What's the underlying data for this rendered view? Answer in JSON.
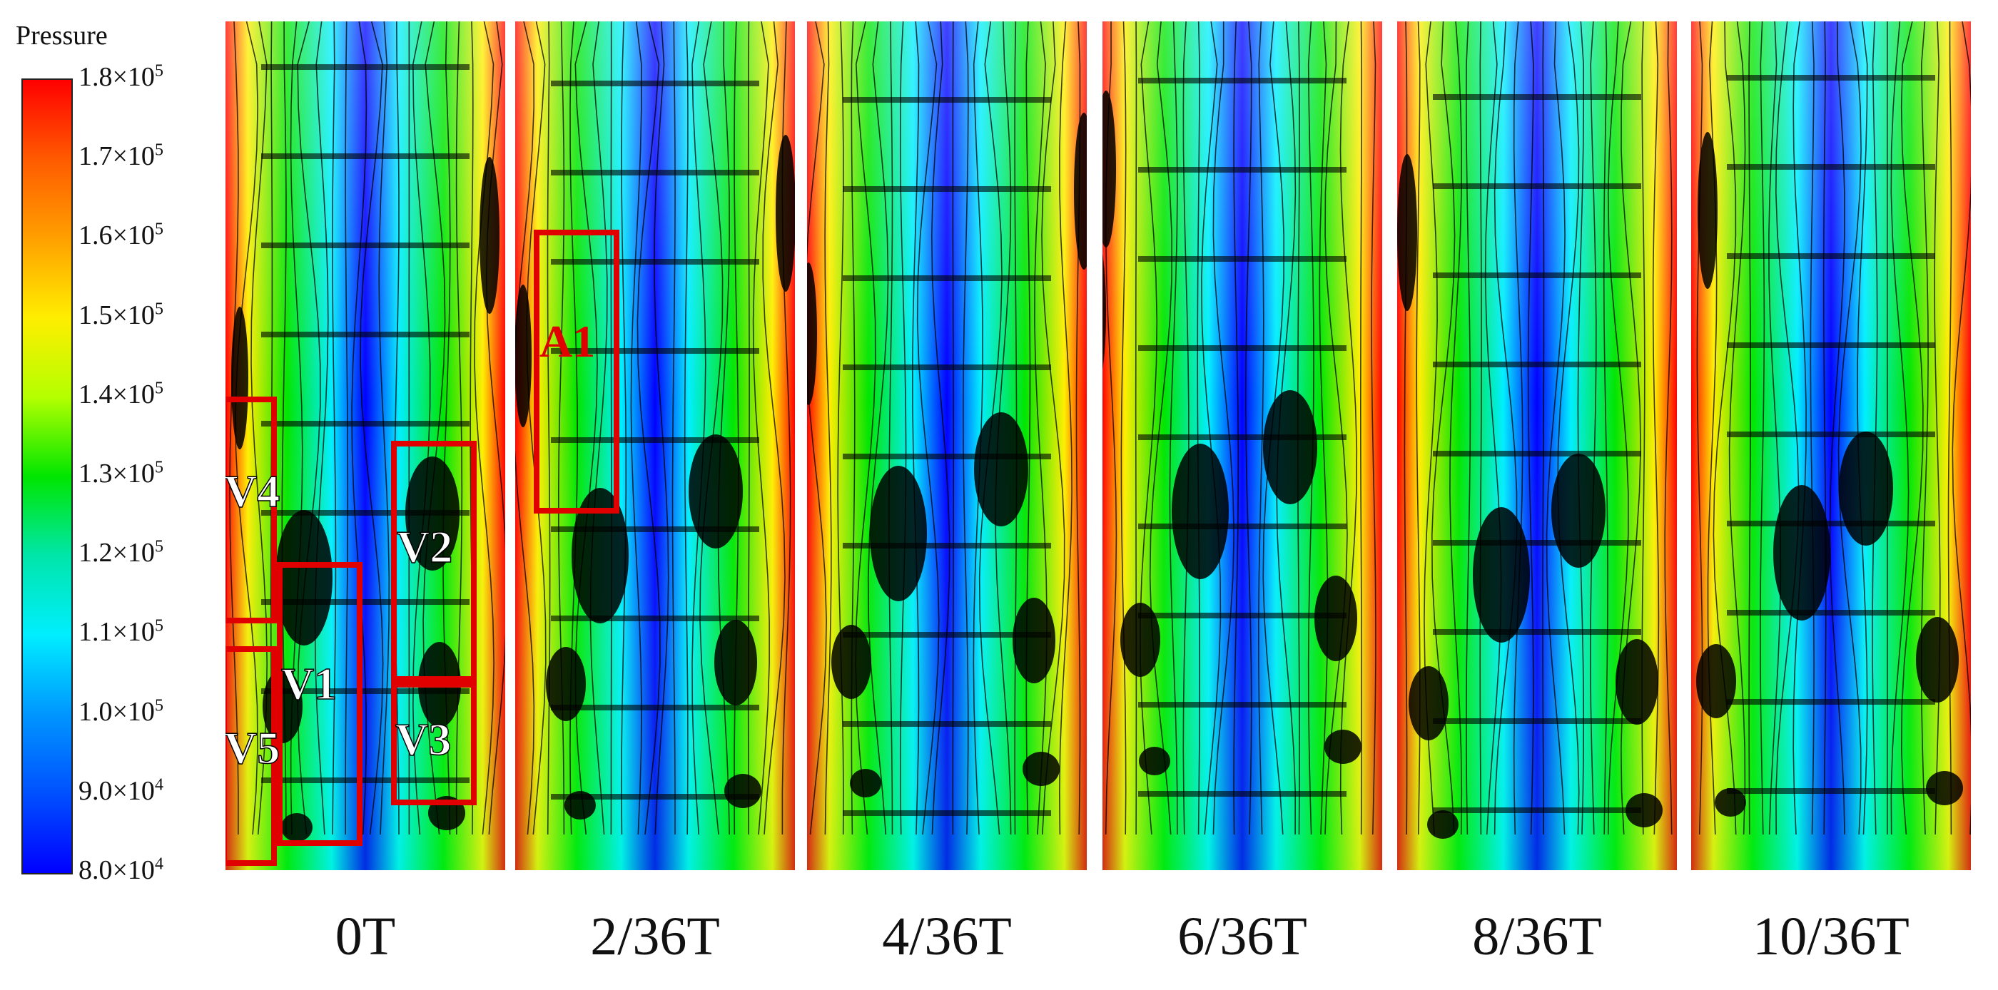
{
  "legend": {
    "title": "Pressure",
    "ticks": [
      {
        "mantissa": "1.8",
        "exp": "5"
      },
      {
        "mantissa": "1.7",
        "exp": "5"
      },
      {
        "mantissa": "1.6",
        "exp": "5"
      },
      {
        "mantissa": "1.5",
        "exp": "5"
      },
      {
        "mantissa": "1.4",
        "exp": "5"
      },
      {
        "mantissa": "1.3",
        "exp": "5"
      },
      {
        "mantissa": "1.2",
        "exp": "5"
      },
      {
        "mantissa": "1.1",
        "exp": "5"
      },
      {
        "mantissa": "1.0",
        "exp": "5"
      },
      {
        "mantissa": "9.0",
        "exp": "4"
      },
      {
        "mantissa": "8.0",
        "exp": "4"
      }
    ],
    "colors": [
      "#ff0000",
      "#ffee00",
      "#00e600",
      "#00eeff",
      "#0000ff"
    ]
  },
  "panels": [
    {
      "caption": "0T"
    },
    {
      "caption": "2/36T"
    },
    {
      "caption": "4/36T"
    },
    {
      "caption": "6/36T"
    },
    {
      "caption": "8/36T"
    },
    {
      "caption": "10/36T"
    }
  ],
  "annotations": [
    "V4",
    "V2",
    "V1",
    "V5",
    "V3",
    "A1"
  ],
  "annotation_color": "#e00000"
}
